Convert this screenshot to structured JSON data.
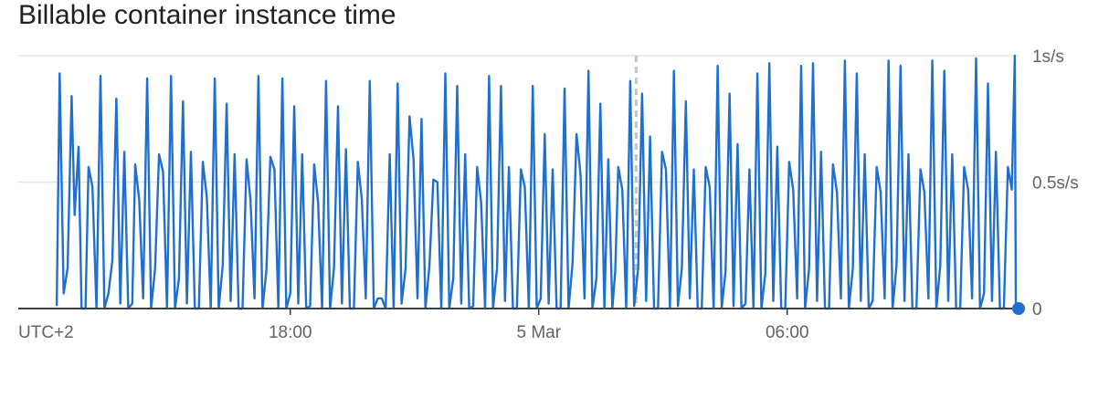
{
  "title": "Billable container instance time",
  "colors": {
    "series": "#1f6fd0",
    "grid": "#e3e3e3",
    "axis": "#3c4043",
    "marker": "#1f6fd0",
    "now_line": "#c4c4c4"
  },
  "chart_data": {
    "type": "line",
    "title": "Billable container instance time",
    "xlabel": "",
    "ylabel": "",
    "xlim": [
      0,
      1
    ],
    "ylim": [
      0,
      1
    ],
    "grid": true,
    "legend": "none",
    "y_ticks": [
      {
        "value": 1,
        "label": "1s/s"
      },
      {
        "value": 0.5,
        "label": "0.5s/s"
      },
      {
        "value": 0,
        "label": "0"
      }
    ],
    "x_ticks": [
      {
        "value": 0.0,
        "label": "UTC+2"
      },
      {
        "value": 0.27,
        "label": "18:00"
      },
      {
        "value": 0.52,
        "label": "5 Mar"
      },
      {
        "value": 0.77,
        "label": "06:00"
      }
    ],
    "series": [
      {
        "values": [
          [
            0.035,
            0.01
          ],
          [
            0.038,
            0.93
          ],
          [
            0.042,
            0.06
          ],
          [
            0.046,
            0.16
          ],
          [
            0.05,
            0.84
          ],
          [
            0.053,
            0.37
          ],
          [
            0.057,
            0.64
          ],
          [
            0.06,
            0.0
          ],
          [
            0.064,
            0.0
          ],
          [
            0.067,
            0.56
          ],
          [
            0.071,
            0.48
          ],
          [
            0.075,
            0.0
          ],
          [
            0.079,
            0.92
          ],
          [
            0.083,
            0.0
          ],
          [
            0.087,
            0.06
          ],
          [
            0.091,
            0.19
          ],
          [
            0.095,
            0.83
          ],
          [
            0.099,
            0.02
          ],
          [
            0.103,
            0.62
          ],
          [
            0.107,
            0.0
          ],
          [
            0.111,
            0.02
          ],
          [
            0.114,
            0.57
          ],
          [
            0.118,
            0.43
          ],
          [
            0.122,
            0.04
          ],
          [
            0.126,
            0.91
          ],
          [
            0.13,
            0.0
          ],
          [
            0.134,
            0.16
          ],
          [
            0.138,
            0.61
          ],
          [
            0.142,
            0.54
          ],
          [
            0.146,
            0.0
          ],
          [
            0.15,
            0.92
          ],
          [
            0.154,
            0.0
          ],
          [
            0.158,
            0.12
          ],
          [
            0.162,
            0.82
          ],
          [
            0.166,
            0.02
          ],
          [
            0.17,
            0.62
          ],
          [
            0.174,
            0.0
          ],
          [
            0.178,
            0.0
          ],
          [
            0.182,
            0.58
          ],
          [
            0.186,
            0.44
          ],
          [
            0.19,
            0.0
          ],
          [
            0.194,
            0.91
          ],
          [
            0.198,
            0.0
          ],
          [
            0.202,
            0.17
          ],
          [
            0.206,
            0.81
          ],
          [
            0.21,
            0.03
          ],
          [
            0.214,
            0.61
          ],
          [
            0.218,
            0.0
          ],
          [
            0.222,
            0.0
          ],
          [
            0.226,
            0.59
          ],
          [
            0.23,
            0.43
          ],
          [
            0.234,
            0.04
          ],
          [
            0.238,
            0.92
          ],
          [
            0.242,
            0.0
          ],
          [
            0.246,
            0.15
          ],
          [
            0.25,
            0.6
          ],
          [
            0.254,
            0.55
          ],
          [
            0.258,
            0.0
          ],
          [
            0.262,
            0.91
          ],
          [
            0.266,
            0.0
          ],
          [
            0.27,
            0.06
          ],
          [
            0.274,
            0.8
          ],
          [
            0.278,
            0.02
          ],
          [
            0.282,
            0.61
          ],
          [
            0.286,
            0.0
          ],
          [
            0.29,
            0.01
          ],
          [
            0.294,
            0.57
          ],
          [
            0.298,
            0.42
          ],
          [
            0.302,
            0.0
          ],
          [
            0.306,
            0.9
          ],
          [
            0.31,
            0.0
          ],
          [
            0.314,
            0.16
          ],
          [
            0.318,
            0.8
          ],
          [
            0.322,
            0.02
          ],
          [
            0.326,
            0.63
          ],
          [
            0.33,
            0.0
          ],
          [
            0.334,
            0.0
          ],
          [
            0.338,
            0.58
          ],
          [
            0.342,
            0.43
          ],
          [
            0.346,
            0.04
          ],
          [
            0.35,
            0.9
          ],
          [
            0.354,
            0.0
          ],
          [
            0.358,
            0.04
          ],
          [
            0.362,
            0.04
          ],
          [
            0.366,
            0.0
          ],
          [
            0.37,
            0.61
          ],
          [
            0.374,
            0.0
          ],
          [
            0.378,
            0.89
          ],
          [
            0.382,
            0.02
          ],
          [
            0.386,
            0.16
          ],
          [
            0.39,
            0.76
          ],
          [
            0.394,
            0.59
          ],
          [
            0.398,
            0.04
          ],
          [
            0.402,
            0.75
          ],
          [
            0.406,
            0.0
          ],
          [
            0.41,
            0.17
          ],
          [
            0.414,
            0.51
          ],
          [
            0.418,
            0.5
          ],
          [
            0.422,
            0.0
          ],
          [
            0.426,
            0.93
          ],
          [
            0.43,
            0.0
          ],
          [
            0.434,
            0.12
          ],
          [
            0.438,
            0.88
          ],
          [
            0.442,
            0.02
          ],
          [
            0.446,
            0.61
          ],
          [
            0.45,
            0.0
          ],
          [
            0.454,
            0.01
          ],
          [
            0.458,
            0.56
          ],
          [
            0.462,
            0.42
          ],
          [
            0.466,
            0.0
          ],
          [
            0.47,
            0.92
          ],
          [
            0.474,
            0.0
          ],
          [
            0.478,
            0.16
          ],
          [
            0.482,
            0.88
          ],
          [
            0.486,
            0.03
          ],
          [
            0.49,
            0.56
          ],
          [
            0.494,
            0.0
          ],
          [
            0.498,
            0.0
          ],
          [
            0.502,
            0.55
          ],
          [
            0.506,
            0.48
          ],
          [
            0.51,
            0.0
          ],
          [
            0.514,
            0.88
          ],
          [
            0.518,
            0.0
          ],
          [
            0.522,
            0.04
          ],
          [
            0.526,
            0.69
          ],
          [
            0.53,
            0.02
          ],
          [
            0.534,
            0.55
          ],
          [
            0.538,
            0.0
          ],
          [
            0.542,
            0.0
          ],
          [
            0.546,
            0.87
          ],
          [
            0.55,
            0.0
          ],
          [
            0.554,
            0.18
          ],
          [
            0.558,
            0.69
          ],
          [
            0.562,
            0.53
          ],
          [
            0.566,
            0.04
          ],
          [
            0.57,
            0.94
          ],
          [
            0.574,
            0.0
          ],
          [
            0.578,
            0.12
          ],
          [
            0.582,
            0.81
          ],
          [
            0.586,
            0.0
          ],
          [
            0.59,
            0.59
          ],
          [
            0.594,
            0.0
          ],
          [
            0.597,
            0.15
          ],
          [
            0.6,
            0.56
          ],
          [
            0.604,
            0.47
          ],
          [
            0.608,
            0.0
          ],
          [
            0.612,
            0.9
          ],
          [
            0.616,
            0.01
          ],
          [
            0.62,
            0.16
          ],
          [
            0.624,
            0.85
          ],
          [
            0.628,
            0.03
          ],
          [
            0.632,
            0.68
          ],
          [
            0.636,
            0.0
          ],
          [
            0.64,
            0.0
          ],
          [
            0.644,
            0.62
          ],
          [
            0.648,
            0.55
          ],
          [
            0.652,
            0.0
          ],
          [
            0.656,
            0.94
          ],
          [
            0.66,
            0.01
          ],
          [
            0.664,
            0.16
          ],
          [
            0.668,
            0.82
          ],
          [
            0.672,
            0.04
          ],
          [
            0.676,
            0.55
          ],
          [
            0.68,
            0.0
          ],
          [
            0.684,
            0.0
          ],
          [
            0.688,
            0.56
          ],
          [
            0.692,
            0.48
          ],
          [
            0.696,
            0.0
          ],
          [
            0.7,
            0.96
          ],
          [
            0.704,
            0.0
          ],
          [
            0.708,
            0.15
          ],
          [
            0.712,
            0.85
          ],
          [
            0.716,
            0.01
          ],
          [
            0.72,
            0.65
          ],
          [
            0.724,
            0.0
          ],
          [
            0.728,
            0.02
          ],
          [
            0.732,
            0.55
          ],
          [
            0.736,
            0.0
          ],
          [
            0.74,
            0.93
          ],
          [
            0.744,
            0.0
          ],
          [
            0.748,
            0.14
          ],
          [
            0.752,
            0.97
          ],
          [
            0.756,
            0.03
          ],
          [
            0.76,
            0.64
          ],
          [
            0.764,
            0.0
          ],
          [
            0.768,
            0.0
          ],
          [
            0.772,
            0.58
          ],
          [
            0.776,
            0.47
          ],
          [
            0.78,
            0.04
          ],
          [
            0.784,
            0.96
          ],
          [
            0.788,
            0.0
          ],
          [
            0.792,
            0.16
          ],
          [
            0.796,
            0.97
          ],
          [
            0.8,
            0.03
          ],
          [
            0.804,
            0.62
          ],
          [
            0.808,
            0.0
          ],
          [
            0.812,
            0.0
          ],
          [
            0.816,
            0.57
          ],
          [
            0.82,
            0.46
          ],
          [
            0.824,
            0.04
          ],
          [
            0.828,
            0.98
          ],
          [
            0.832,
            0.0
          ],
          [
            0.836,
            0.16
          ],
          [
            0.84,
            0.93
          ],
          [
            0.844,
            0.03
          ],
          [
            0.848,
            0.61
          ],
          [
            0.852,
            0.0
          ],
          [
            0.856,
            0.03
          ],
          [
            0.86,
            0.56
          ],
          [
            0.864,
            0.46
          ],
          [
            0.868,
            0.04
          ],
          [
            0.872,
            0.98
          ],
          [
            0.876,
            0.0
          ],
          [
            0.88,
            0.17
          ],
          [
            0.884,
            0.96
          ],
          [
            0.888,
            0.03
          ],
          [
            0.892,
            0.61
          ],
          [
            0.896,
            0.0
          ],
          [
            0.9,
            0.0
          ],
          [
            0.904,
            0.55
          ],
          [
            0.908,
            0.46
          ],
          [
            0.912,
            0.04
          ],
          [
            0.916,
            0.98
          ],
          [
            0.92,
            0.0
          ],
          [
            0.924,
            0.17
          ],
          [
            0.928,
            0.94
          ],
          [
            0.932,
            0.03
          ],
          [
            0.936,
            0.61
          ],
          [
            0.94,
            0.0
          ],
          [
            0.944,
            0.0
          ],
          [
            0.948,
            0.56
          ],
          [
            0.952,
            0.47
          ],
          [
            0.956,
            0.04
          ],
          [
            0.96,
            0.99
          ],
          [
            0.964,
            0.0
          ],
          [
            0.968,
            0.06
          ],
          [
            0.972,
            0.89
          ],
          [
            0.976,
            0.03
          ],
          [
            0.98,
            0.62
          ],
          [
            0.984,
            0.0
          ],
          [
            0.988,
            0.0
          ],
          [
            0.992,
            0.56
          ],
          [
            0.996,
            0.47
          ],
          [
            0.999,
            1.0
          ],
          [
            1.0,
            0.0
          ]
        ]
      }
    ],
    "annotations": [
      {
        "type": "vertical-dashed-line",
        "x": 0.618
      },
      {
        "type": "current-value-marker",
        "x": 1.0,
        "y": 0
      }
    ]
  }
}
